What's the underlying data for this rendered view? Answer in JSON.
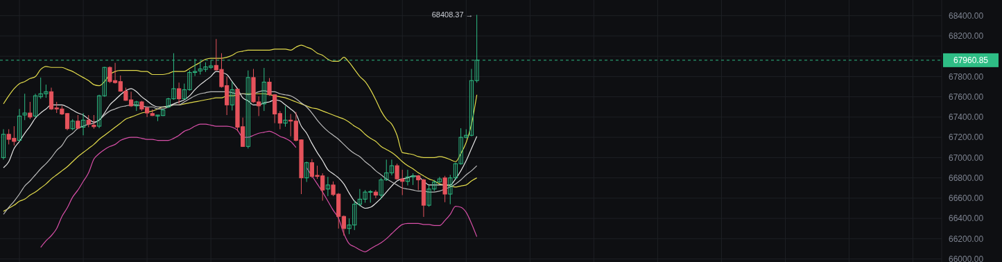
{
  "chart_data": {
    "type": "candlestick",
    "categories": [
      null,
      null,
      null,
      null,
      null,
      null,
      null,
      null,
      null,
      null,
      null,
      null,
      null,
      null,
      null,
      null,
      null,
      null,
      null,
      null,
      null,
      null,
      null,
      null,
      null,
      null,
      null,
      null,
      null,
      null,
      null,
      null,
      null,
      null,
      null,
      null,
      null,
      null,
      null,
      null,
      null,
      null,
      null,
      null,
      null,
      null,
      null,
      null,
      null,
      null,
      null,
      null,
      null,
      null,
      null,
      null,
      null,
      null,
      null,
      null,
      null,
      null,
      null,
      null,
      null,
      null,
      null,
      null,
      null,
      null,
      null,
      null,
      null,
      null,
      null,
      null,
      null,
      null,
      null,
      null,
      null,
      null,
      null,
      null,
      null,
      null,
      null,
      null,
      null,
      null
    ],
    "ohlc": [
      [
        67000,
        67280,
        66980,
        67230
      ],
      [
        67230,
        67280,
        67130,
        67180
      ],
      [
        67190,
        67310,
        67120,
        67160
      ],
      [
        67170,
        67480,
        67160,
        67410
      ],
      [
        67420,
        67630,
        67370,
        67440
      ],
      [
        67440,
        67550,
        67380,
        67400
      ],
      [
        67410,
        67630,
        67400,
        67610
      ],
      [
        67600,
        67790,
        67580,
        67630
      ],
      [
        67630,
        67720,
        67590,
        67650
      ],
      [
        67650,
        67690,
        67470,
        67480
      ],
      [
        67490,
        67550,
        67440,
        67480
      ],
      [
        67480,
        67510,
        67420,
        67430
      ],
      [
        67435,
        67440,
        67270,
        67285
      ],
      [
        67285,
        67380,
        67270,
        67360
      ],
      [
        67360,
        67420,
        67280,
        67290
      ],
      [
        67300,
        67440,
        67220,
        67370
      ],
      [
        67370,
        67420,
        67300,
        67330
      ],
      [
        67320,
        67420,
        67285,
        67305
      ],
      [
        67310,
        67620,
        67290,
        67610
      ],
      [
        67610,
        67895,
        67600,
        67890
      ],
      [
        67890,
        67900,
        67735,
        67750
      ],
      [
        67760,
        67935,
        67730,
        67740
      ],
      [
        67750,
        67810,
        67650,
        67655
      ],
      [
        67655,
        67690,
        67560,
        67565
      ],
      [
        67570,
        67650,
        67500,
        67510
      ],
      [
        67510,
        67560,
        67460,
        67550
      ],
      [
        67550,
        67560,
        67460,
        67480
      ],
      [
        67490,
        67500,
        67400,
        67440
      ],
      [
        67435,
        67475,
        67410,
        67415
      ],
      [
        67410,
        67420,
        67360,
        67420
      ],
      [
        67415,
        67480,
        67410,
        67470
      ],
      [
        67500,
        67590,
        67490,
        67580
      ],
      [
        67580,
        68030,
        67570,
        67680
      ],
      [
        67680,
        67740,
        67530,
        67580
      ],
      [
        67580,
        67730,
        67570,
        67670
      ],
      [
        67670,
        67860,
        67660,
        67840
      ],
      [
        67840,
        67975,
        67805,
        67850
      ],
      [
        67855,
        67950,
        67820,
        67875
      ],
      [
        67870,
        67940,
        67845,
        67895
      ],
      [
        67890,
        67960,
        67875,
        67905
      ],
      [
        67910,
        68170,
        67860,
        67865
      ],
      [
        67870,
        68030,
        67690,
        67700
      ],
      [
        67710,
        67800,
        67420,
        67520
      ],
      [
        67520,
        67750,
        67465,
        67670
      ],
      [
        67675,
        67680,
        67260,
        67300
      ],
      [
        67305,
        67395,
        67105,
        67110
      ],
      [
        67110,
        67860,
        67090,
        67790
      ],
      [
        67790,
        67875,
        67540,
        67550
      ],
      [
        67550,
        67605,
        67410,
        67510
      ],
      [
        67530,
        67885,
        67460,
        67745
      ],
      [
        67745,
        67785,
        67610,
        67620
      ],
      [
        67620,
        67625,
        67340,
        67430
      ],
      [
        67435,
        67460,
        67280,
        67340
      ],
      [
        67340,
        67510,
        67305,
        67370
      ],
      [
        67370,
        67430,
        67210,
        67360
      ],
      [
        67360,
        67450,
        67160,
        67170
      ],
      [
        67175,
        67180,
        66640,
        66800
      ],
      [
        66800,
        66960,
        66760,
        66950
      ],
      [
        66950,
        66985,
        66800,
        66815
      ],
      [
        66825,
        66920,
        66790,
        66815
      ],
      [
        66820,
        66845,
        66575,
        66680
      ],
      [
        66690,
        66810,
        66620,
        66730
      ],
      [
        66730,
        66765,
        66620,
        66635
      ],
      [
        66640,
        66650,
        66300,
        66420
      ],
      [
        66420,
        66430,
        66230,
        66300
      ],
      [
        66300,
        66400,
        66245,
        66335
      ],
      [
        66335,
        66575,
        66285,
        66540
      ],
      [
        66540,
        66690,
        66520,
        66590
      ],
      [
        66590,
        66680,
        66555,
        66660
      ],
      [
        66660,
        66680,
        66555,
        66665
      ],
      [
        66660,
        66680,
        66600,
        66630
      ],
      [
        66630,
        66800,
        66590,
        66780
      ],
      [
        66780,
        66980,
        66770,
        66850
      ],
      [
        66850,
        66980,
        66825,
        66920
      ],
      [
        66920,
        66940,
        66780,
        66790
      ],
      [
        66790,
        66880,
        66630,
        66765
      ],
      [
        66765,
        66880,
        66725,
        66810
      ],
      [
        66810,
        66845,
        66730,
        66820
      ],
      [
        66820,
        66830,
        66680,
        66780
      ],
      [
        66780,
        66790,
        66415,
        66530
      ],
      [
        66530,
        66730,
        66515,
        66690
      ],
      [
        66690,
        66780,
        66670,
        66760
      ],
      [
        66760,
        66810,
        66750,
        66790
      ],
      [
        66800,
        66820,
        66560,
        66640
      ],
      [
        66640,
        66830,
        66540,
        66800
      ],
      [
        66800,
        66950,
        66780,
        66940
      ],
      [
        66940,
        67290,
        66930,
        67200
      ],
      [
        67200,
        67280,
        67190,
        67220
      ],
      [
        67220,
        67875,
        67210,
        67760
      ],
      [
        67760,
        68408.37,
        67740,
        67960.85
      ]
    ],
    "series": [
      {
        "type": "line",
        "color": "#e3dc4c",
        "values": [
          67530,
          67610,
          67680,
          67730,
          67750,
          67780,
          67800,
          67870,
          67900,
          67890,
          67890,
          67890,
          67870,
          67850,
          67820,
          67790,
          67760,
          67720,
          67710,
          67750,
          67820,
          67850,
          67860,
          67860,
          67860,
          67860,
          67850,
          67850,
          67820,
          67820,
          67820,
          67830,
          67850,
          67850,
          67850,
          67880,
          67910,
          67940,
          67970,
          67980,
          67980,
          67980,
          67990,
          68010,
          68040,
          68050,
          68060,
          68060,
          68060,
          68060,
          68060,
          68070,
          68070,
          68070,
          68060,
          68090,
          68110,
          68090,
          68070,
          68030,
          68010,
          67970,
          67950,
          67950,
          67990,
          67940,
          67870,
          67800,
          67750,
          67670,
          67570,
          67460,
          67380,
          67330,
          67220,
          67050,
          67040,
          67030,
          67010,
          67000,
          67000,
          67000,
          67010,
          67000,
          66980,
          66960,
          67040,
          67150,
          67330,
          67620
        ]
      },
      {
        "type": "line",
        "color": "#e3dc4c",
        "values": [
          66470,
          66500,
          66530,
          66570,
          66590,
          66630,
          66660,
          66700,
          66740,
          66790,
          66830,
          66870,
          66910,
          66960,
          67010,
          67050,
          67090,
          67130,
          67180,
          67220,
          67260,
          67300,
          67340,
          67380,
          67400,
          67420,
          67440,
          67450,
          67460,
          67480,
          67500,
          67500,
          67520,
          67520,
          67530,
          67540,
          67550,
          67560,
          67570,
          67580,
          67590,
          67590,
          67610,
          67610,
          67620,
          67630,
          67630,
          67630,
          67630,
          67630,
          67620,
          67610,
          67600,
          67590,
          67570,
          67550,
          67530,
          67510,
          67490,
          67480,
          67460,
          67440,
          67420,
          67400,
          67380,
          67350,
          67310,
          67280,
          67230,
          67190,
          67160,
          67110,
          67080,
          67050,
          67010,
          66960,
          66920,
          66890,
          66850,
          66820,
          66790,
          66770,
          66740,
          66730,
          66720,
          66710,
          66720,
          66730,
          66770,
          66800
        ]
      },
      {
        "type": "line",
        "color": "#d84fa8",
        "values": [
          null,
          null,
          null,
          null,
          null,
          null,
          null,
          66115,
          66180,
          66230,
          66300,
          66420,
          66505,
          66610,
          66680,
          66765,
          66850,
          66985,
          67040,
          67080,
          67110,
          67130,
          67170,
          67190,
          67200,
          67200,
          67190,
          67180,
          67180,
          67170,
          67170,
          67170,
          67190,
          67220,
          67260,
          67280,
          67310,
          67330,
          67330,
          67320,
          67310,
          67310,
          67310,
          67300,
          67270,
          67200,
          67200,
          67220,
          67240,
          67250,
          67260,
          67240,
          67210,
          67190,
          67160,
          67100,
          null,
          66900,
          66820,
          66740,
          66660,
          66570,
          66480,
          66400,
          66250,
          66150,
          66120,
          66090,
          66070,
          66100,
          66130,
          66160,
          66200,
          66250,
          66300,
          66340,
          66350,
          66350,
          66350,
          66340,
          66340,
          66330,
          66330,
          66380,
          66440,
          66520,
          66510,
          66460,
          66350,
          66220
        ]
      },
      {
        "type": "line",
        "color": "#e6e6e6",
        "values": [
          66900,
          66960,
          67090,
          67160,
          67240,
          67310,
          67390,
          67440,
          67480,
          67520,
          67520,
          67520,
          67500,
          67470,
          67440,
          67420,
          67380,
          67350,
          67370,
          67440,
          67520,
          67570,
          67620,
          67660,
          67680,
          67650,
          67600,
          67560,
          67520,
          67500,
          67500,
          67510,
          67530,
          67550,
          67570,
          67610,
          67670,
          67720,
          67760,
          67800,
          67850,
          67840,
          67820,
          67750,
          67680,
          67590,
          67560,
          67520,
          67520,
          67540,
          67550,
          67570,
          67560,
          67520,
          67480,
          67430,
          67310,
          67240,
          67140,
          67050,
          66970,
          66880,
          66840,
          66800,
          66740,
          66650,
          66570,
          66530,
          66500,
          66510,
          66550,
          66600,
          66660,
          66720,
          66770,
          66790,
          66800,
          66820,
          66810,
          66770,
          66730,
          66730,
          66730,
          66730,
          66730,
          66790,
          66870,
          66970,
          67090,
          67210
        ]
      },
      {
        "type": "line",
        "color": "#bdbdbd",
        "values": [
          66440,
          66510,
          66570,
          66640,
          66720,
          66770,
          66830,
          66890,
          66940,
          67000,
          67070,
          67120,
          67200,
          67240,
          67290,
          67310,
          67330,
          67340,
          67370,
          67420,
          67460,
          67480,
          67500,
          67510,
          67520,
          67520,
          67510,
          67500,
          67500,
          67480,
          67480,
          67500,
          67520,
          67520,
          67550,
          67580,
          67610,
          67630,
          67640,
          67650,
          67650,
          67650,
          67650,
          67640,
          67630,
          67630,
          67620,
          67630,
          67650,
          67660,
          67650,
          67650,
          67630,
          67620,
          67610,
          67580,
          67540,
          67500,
          67440,
          67370,
          67310,
          67260,
          67220,
          67180,
          67130,
          67080,
          67040,
          67010,
          66960,
          66920,
          66870,
          66830,
          66790,
          66760,
          66730,
          66700,
          66690,
          66680,
          66670,
          66670,
          66660,
          66660,
          66670,
          66690,
          66710,
          66740,
          66780,
          66830,
          66870,
          66920
        ]
      }
    ],
    "ylim": [
      65970,
      68555
    ],
    "yticks": [
      {
        "value": 66000,
        "label": "66000.00"
      },
      {
        "value": 66200,
        "label": "66200.00"
      },
      {
        "value": 66400,
        "label": "66400.00"
      },
      {
        "value": 66600,
        "label": "66600.00"
      },
      {
        "value": 66800,
        "label": "66800.00"
      },
      {
        "value": 67000,
        "label": "67000.00"
      },
      {
        "value": 67200,
        "label": "67200.00"
      },
      {
        "value": 67400,
        "label": "67400.00"
      },
      {
        "value": 67600,
        "label": "67600.00"
      },
      {
        "value": 67800,
        "label": "67800.00"
      },
      {
        "value": 68000,
        "label": null
      },
      {
        "value": 68200,
        "label": "68200.00"
      },
      {
        "value": 68400,
        "label": "68400.00"
      }
    ],
    "ref_lines": [
      {
        "axis": "y",
        "value": 67960.85,
        "label": "67960.85",
        "color": "#2ebd85",
        "line_style": "dashed"
      }
    ],
    "annotations": [
      "68408.37 →"
    ],
    "grid": true,
    "tick_labels": "y",
    "marker": "none"
  }
}
